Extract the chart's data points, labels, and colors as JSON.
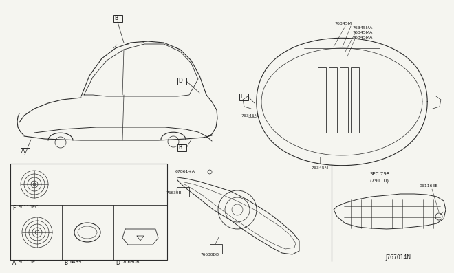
{
  "bg_color": "#f5f5f0",
  "line_color": "#2a2a2a",
  "text_color": "#1a1a1a",
  "diagram_id": "J767014N",
  "parts_grid": {
    "A_code": "96116E",
    "B_code": "64B91",
    "D_code": "76630B",
    "F_code": "96116EC"
  },
  "top_labels": [
    "76345M",
    "76345MA",
    "76345MA",
    "76345MA",
    "76345M"
  ],
  "mid_labels": [
    "67861+A",
    "76630B",
    "76630DB"
  ],
  "right_label": "96116EB",
  "sec_label": "SEC.798",
  "sec_sub": "(79110)"
}
